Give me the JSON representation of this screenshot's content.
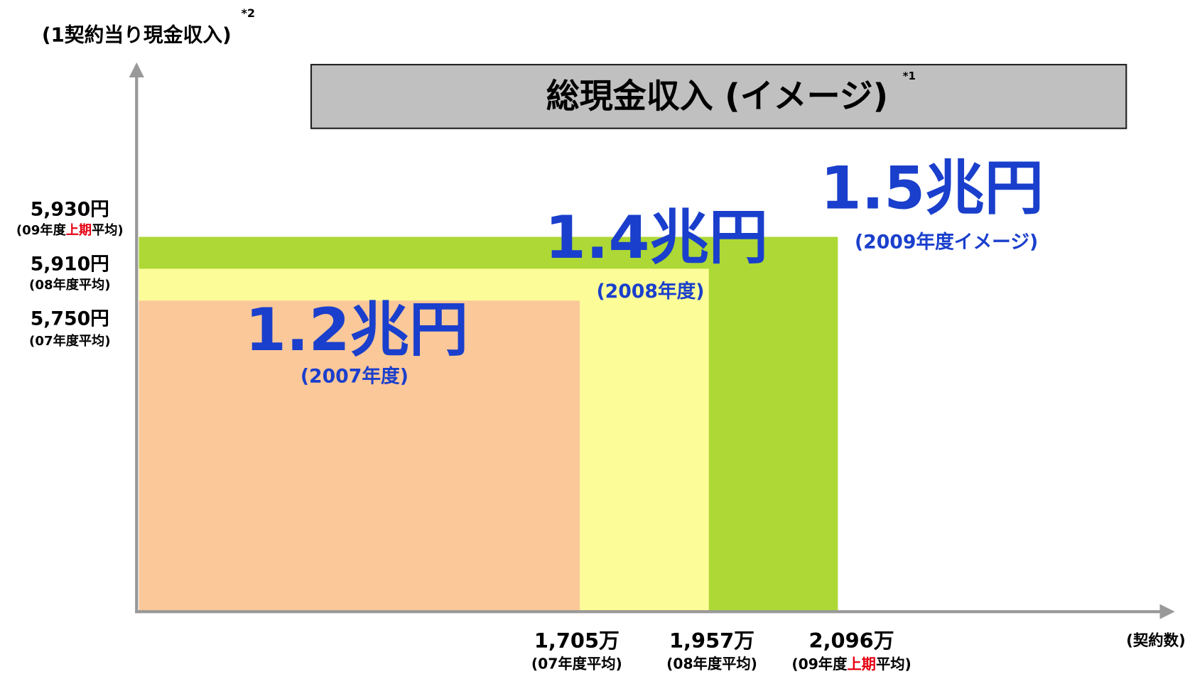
{
  "axis_labels": {
    "y": "(1契約当り現金収入)",
    "y_note": "*2",
    "x": "(契約数)"
  },
  "title": "総現金収入 (イメージ)",
  "title_note": "*1",
  "y_labels": [
    {
      "value": "5,930円",
      "sub": [
        "(09年度",
        "上期",
        "平均)"
      ]
    },
    {
      "value": "5,910円",
      "sub": [
        "(08年度平均)"
      ]
    },
    {
      "value": "5,750円",
      "sub": [
        "(07年度平均)"
      ]
    }
  ],
  "x_labels": [
    {
      "value": "1,705万",
      "sub": [
        "(07年度平均)"
      ]
    },
    {
      "value": "1,957万",
      "sub": [
        "(08年度平均)"
      ]
    },
    {
      "value": "2,096万",
      "sub": [
        "(09年度",
        "上期",
        "平均)"
      ]
    }
  ],
  "areas": [
    {
      "total": "1.2兆円",
      "year": "(2007年度)"
    },
    {
      "total": "1.4兆円",
      "year": "(2008年度)"
    },
    {
      "total": "1.5兆円",
      "year": "(2009年度イメージ)"
    }
  ]
}
